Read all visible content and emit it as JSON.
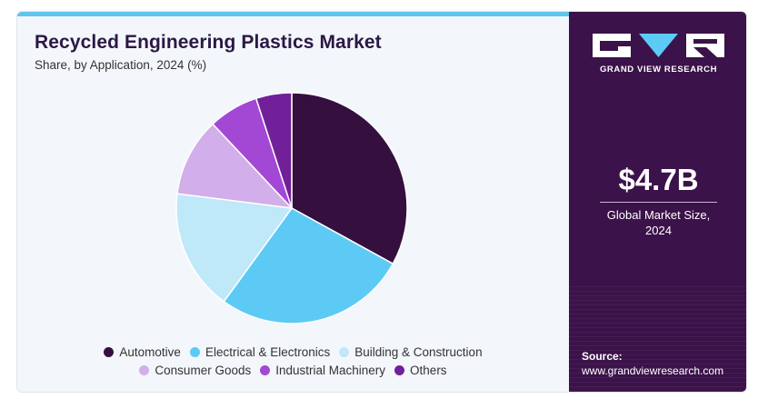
{
  "title": "Recycled Engineering Plastics Market",
  "subtitle": "Share, by Application, 2024 (%)",
  "brand": {
    "name": "GRAND VIEW RESEARCH"
  },
  "stat": {
    "value": "$4.7B",
    "label_line1": "Global Market Size,",
    "label_line2": "2024"
  },
  "source": {
    "label": "Source:",
    "url": "www.grandviewresearch.com"
  },
  "chart_data": {
    "type": "pie",
    "title": "Recycled Engineering Plastics Market",
    "subtitle": "Share, by Application, 2024 (%)",
    "legend_position": "bottom",
    "categories": [
      "Automotive",
      "Electrical & Electronics",
      "Building & Construction",
      "Consumer Goods",
      "Industrial Machinery",
      "Others"
    ],
    "values": [
      33,
      27,
      17,
      11,
      7,
      5
    ],
    "colors": [
      "#35103f",
      "#5dcaf5",
      "#bfe8f9",
      "#d2aeea",
      "#a348d5",
      "#721f9a"
    ]
  }
}
